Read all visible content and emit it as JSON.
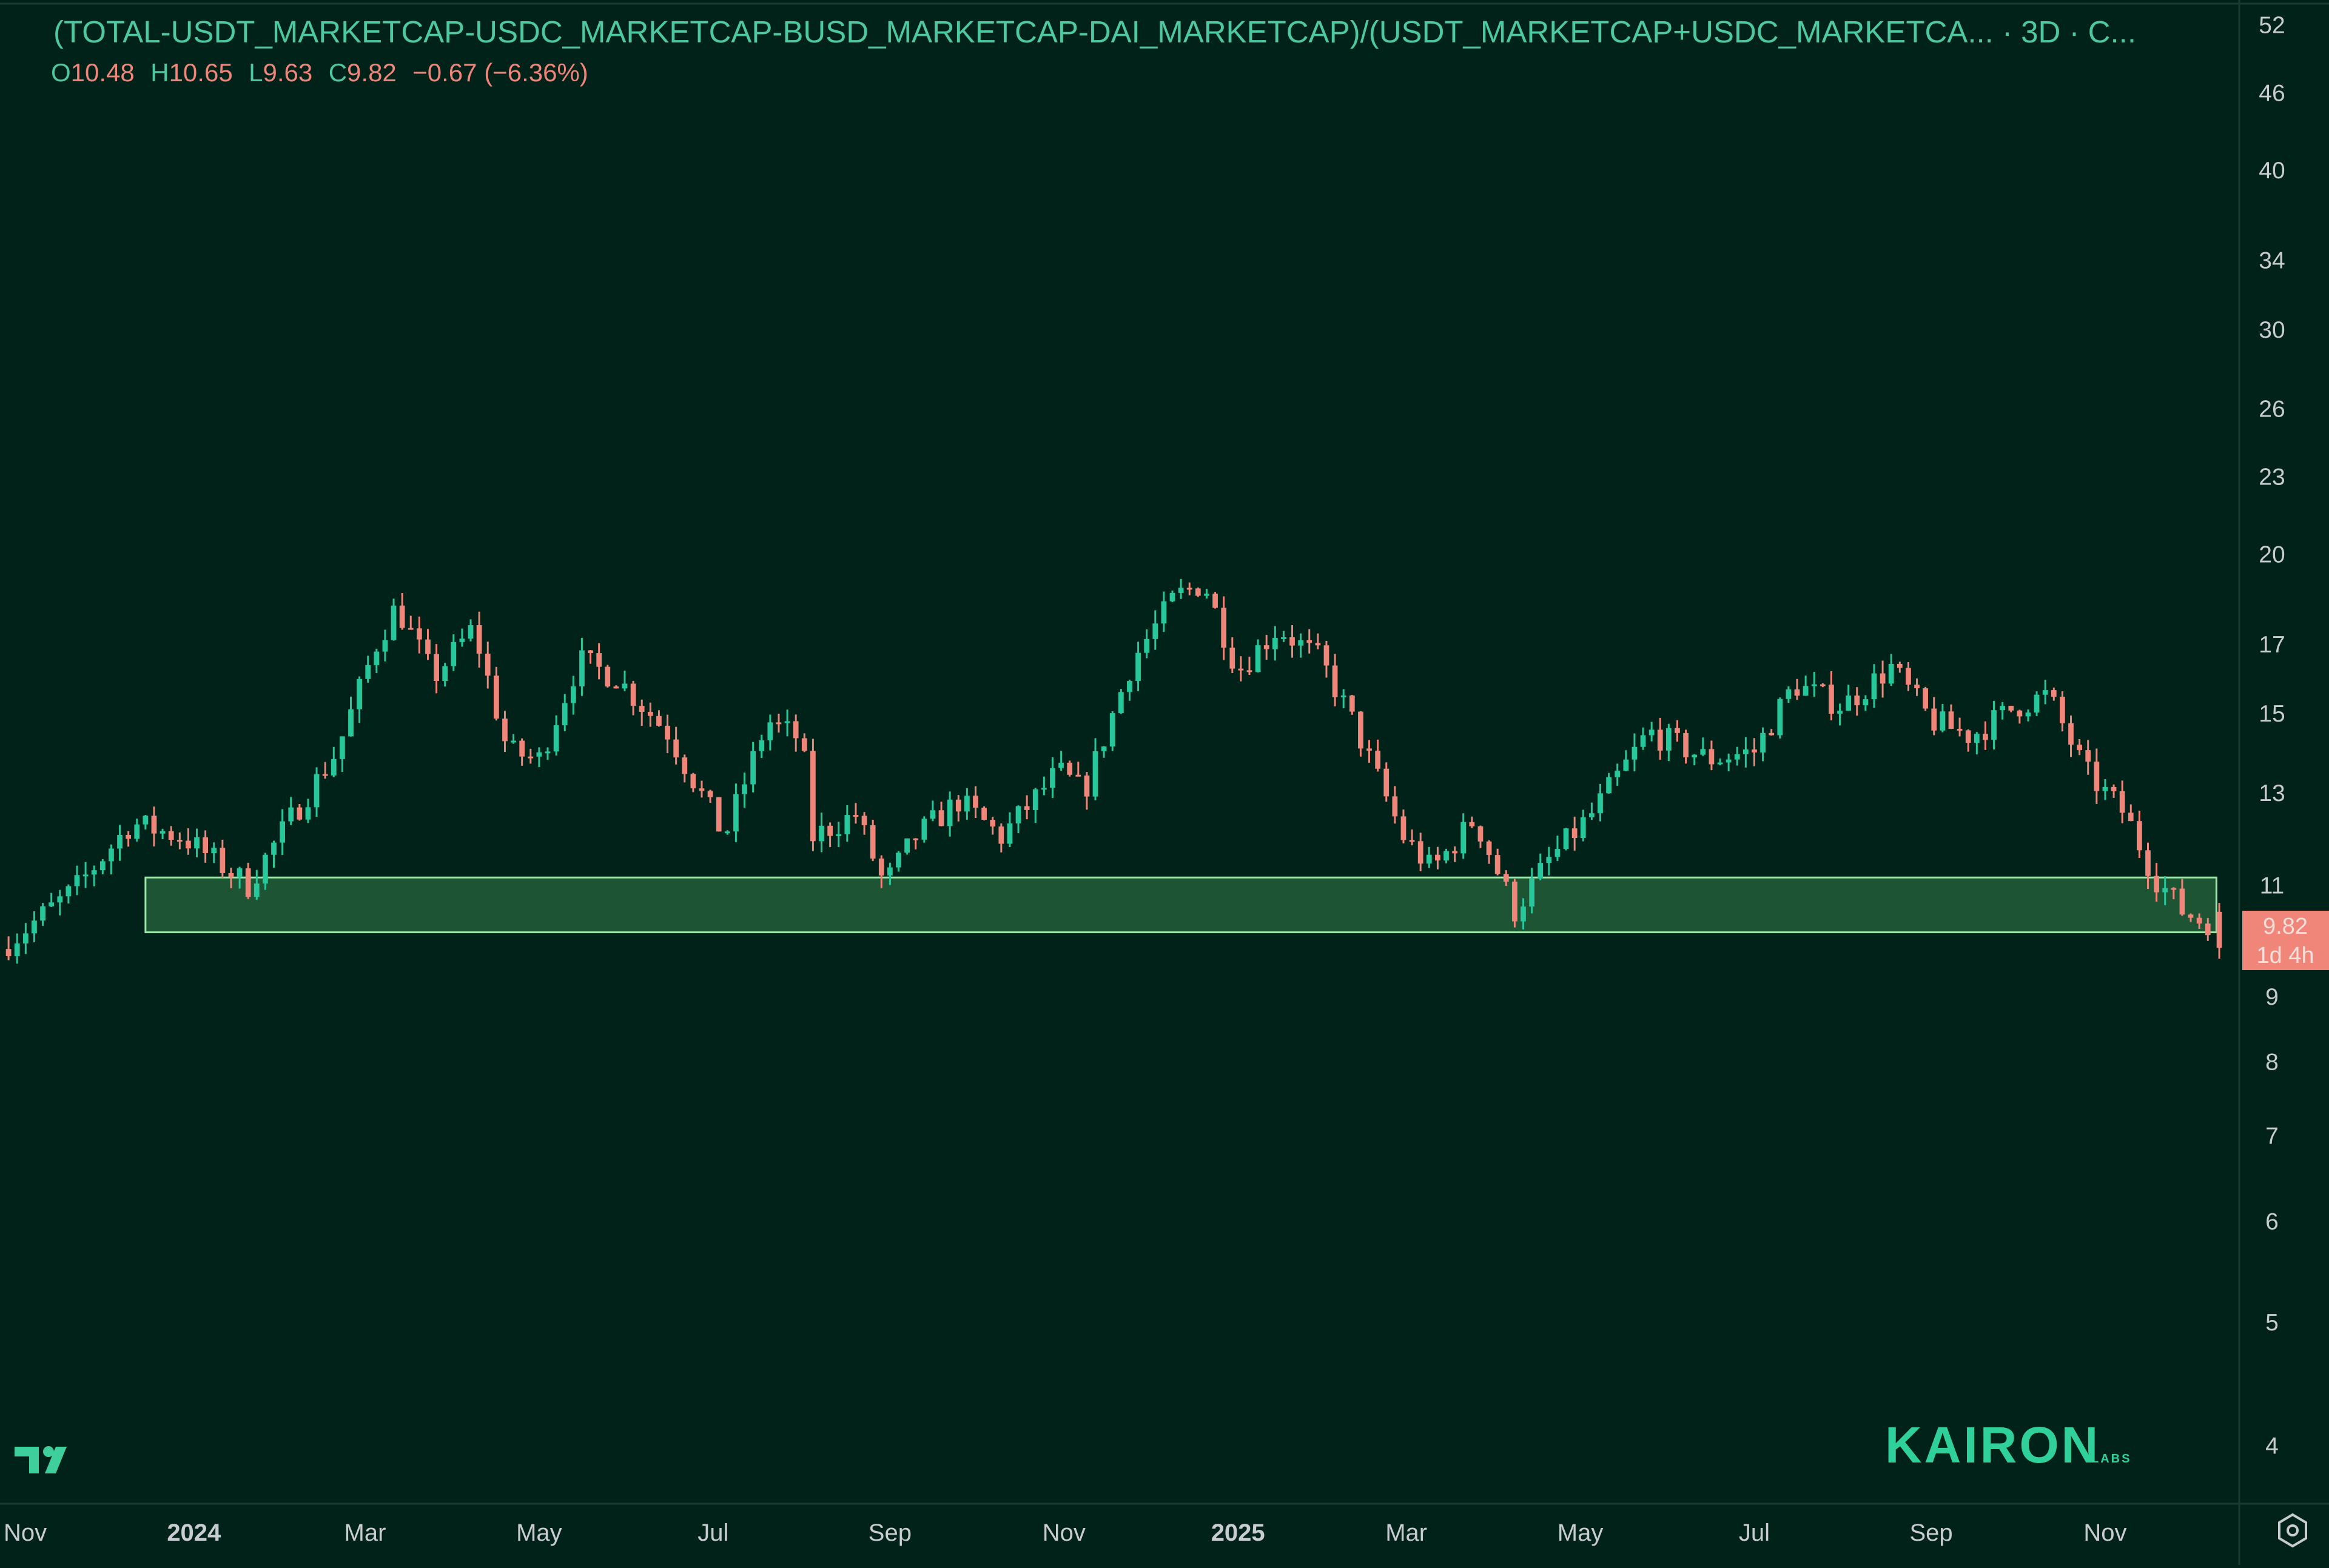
{
  "header": {
    "title": "(TOTAL-USDT_MARKETCAP-USDC_MARKETCAP-BUSD_MARKETCAP-DAI_MARKETCAP)/(USDT_MARKETCAP+USDC_MARKETCA... · 3D · C...",
    "ohlc": {
      "o_label": "O",
      "o_value": "10.48",
      "h_label": "H",
      "h_value": "10.65",
      "l_label": "L",
      "l_value": "9.63",
      "c_label": "C",
      "c_value": "9.82",
      "change": "−0.67 (−6.36%)"
    }
  },
  "price_tag": {
    "price": "9.82",
    "countdown": "1d 4h"
  },
  "brand": {
    "name": "KAIRON",
    "sub": "LABS"
  },
  "colors": {
    "background": "#002219",
    "up": "#26c79a",
    "down": "#f0857a",
    "zone_fill": "#1f5a37",
    "zone_stroke": "#9be6a8",
    "axis_text": "#c8ccd0",
    "title": "#4ec8a0"
  },
  "icons": {
    "logo": "tradingview-logo-icon",
    "settings": "settings-gear-icon"
  },
  "chart_data": {
    "type": "candlestick",
    "timeframe": "3D",
    "y_scale": "log",
    "ylim": [
      3.6,
      54
    ],
    "y_ticks": [
      "52",
      "46",
      "40",
      "34",
      "30",
      "26",
      "23",
      "20",
      "17",
      "15",
      "13",
      "11",
      "9",
      "8",
      "7",
      "6",
      "5",
      "4"
    ],
    "x_ticks": [
      {
        "label": "Nov",
        "date": "2023-11-01",
        "bold": false
      },
      {
        "label": "2024",
        "date": "2024-01-01",
        "bold": true
      },
      {
        "label": "Mar",
        "date": "2024-03-01",
        "bold": false
      },
      {
        "label": "May",
        "date": "2024-05-01",
        "bold": false
      },
      {
        "label": "Jul",
        "date": "2024-07-01",
        "bold": false
      },
      {
        "label": "Sep",
        "date": "2024-09-01",
        "bold": false
      },
      {
        "label": "Nov",
        "date": "2024-11-01",
        "bold": false
      },
      {
        "label": "2025",
        "date": "2025-01-01",
        "bold": true
      },
      {
        "label": "Mar",
        "date": "2025-03-01",
        "bold": false
      },
      {
        "label": "May",
        "date": "2025-05-01",
        "bold": false
      },
      {
        "label": "Jul",
        "date": "2025-07-01",
        "bold": false
      },
      {
        "label": "Sep",
        "date": "2025-09-01",
        "bold": false
      },
      {
        "label": "Nov",
        "date": "2025-11-01",
        "bold": false
      }
    ],
    "x_range": [
      "2023-10-25",
      "2025-12-18"
    ],
    "support_zone": {
      "x_start": "2023-12-15",
      "x_end": "2025-12-10",
      "low": 10.1,
      "high": 11.15
    },
    "last_candle": {
      "open": 10.48,
      "high": 10.65,
      "low": 9.63,
      "close": 9.82
    },
    "trend_path": [
      [
        "2023-10-25",
        9.8
      ],
      [
        "2023-11-20",
        10.9
      ],
      [
        "2023-12-10",
        12.3
      ],
      [
        "2023-12-28",
        12.0
      ],
      [
        "2024-01-20",
        11.0
      ],
      [
        "2024-02-05",
        12.5
      ],
      [
        "2024-02-20",
        14.0
      ],
      [
        "2024-03-05",
        17.0
      ],
      [
        "2024-03-12",
        18.2
      ],
      [
        "2024-03-25",
        16.0
      ],
      [
        "2024-04-08",
        17.5
      ],
      [
        "2024-04-20",
        14.0
      ],
      [
        "2024-05-01",
        13.8
      ],
      [
        "2024-05-15",
        16.5
      ],
      [
        "2024-05-28",
        16.0
      ],
      [
        "2024-06-15",
        14.5
      ],
      [
        "2024-07-05",
        12.0
      ],
      [
        "2024-07-20",
        14.8
      ],
      [
        "2024-08-01",
        14.3
      ],
      [
        "2024-08-05",
        12.0
      ],
      [
        "2024-08-20",
        12.5
      ],
      [
        "2024-08-30",
        11.0
      ],
      [
        "2024-09-10",
        12.0
      ],
      [
        "2024-09-25",
        12.8
      ],
      [
        "2024-10-10",
        12.0
      ],
      [
        "2024-10-30",
        13.5
      ],
      [
        "2024-11-08",
        13.0
      ],
      [
        "2024-11-25",
        16.5
      ],
      [
        "2024-12-10",
        18.5
      ],
      [
        "2024-12-20",
        19.0
      ],
      [
        "2025-01-01",
        16.2
      ],
      [
        "2025-01-15",
        17.5
      ],
      [
        "2025-01-30",
        16.5
      ],
      [
        "2025-02-10",
        14.8
      ],
      [
        "2025-02-28",
        12.0
      ],
      [
        "2025-03-10",
        11.3
      ],
      [
        "2025-03-25",
        12.4
      ],
      [
        "2025-04-08",
        10.5
      ],
      [
        "2025-04-20",
        11.5
      ],
      [
        "2025-05-05",
        12.5
      ],
      [
        "2025-05-25",
        14.5
      ],
      [
        "2025-06-15",
        13.8
      ],
      [
        "2025-07-01",
        14.0
      ],
      [
        "2025-07-15",
        15.8
      ],
      [
        "2025-08-01",
        15.2
      ],
      [
        "2025-08-18",
        16.3
      ],
      [
        "2025-09-01",
        14.8
      ],
      [
        "2025-09-15",
        14.4
      ],
      [
        "2025-10-01",
        15.2
      ],
      [
        "2025-10-12",
        15.5
      ],
      [
        "2025-10-25",
        13.5
      ],
      [
        "2025-11-08",
        12.5
      ],
      [
        "2025-11-18",
        11.2
      ],
      [
        "2025-11-28",
        10.5
      ],
      [
        "2025-12-05",
        10.3
      ]
    ]
  }
}
